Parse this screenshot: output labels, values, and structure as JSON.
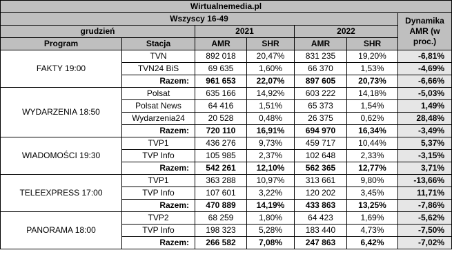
{
  "header": {
    "title": "Wirtualnemedia.pl",
    "subtitle": "Wszyscy 16-49",
    "period": "grudzień",
    "year_a": "2021",
    "year_b": "2022",
    "dynamics": "Dynamika AMR (w proc.)",
    "col_program": "Program",
    "col_station": "Stacja",
    "col_amr_a": "AMR",
    "col_shr_a": "SHR",
    "col_amr_b": "AMR",
    "col_shr_b": "SHR"
  },
  "groups": [
    {
      "program": "FAKTY 19:00",
      "rows": [
        {
          "station": "TVN",
          "amr21": "892 018",
          "shr21": "20,47%",
          "amr22": "831 235",
          "shr22": "19,20%",
          "dyn": "-6,81%"
        },
        {
          "station": "TVN24 BiS",
          "amr21": "69 635",
          "shr21": "1,60%",
          "amr22": "66 370",
          "shr22": "1,53%",
          "dyn": "-4,69%"
        }
      ],
      "total": {
        "label": "Razem:",
        "amr21": "961 653",
        "shr21": "22,07%",
        "amr22": "897 605",
        "shr22": "20,73%",
        "dyn": "-6,66%"
      }
    },
    {
      "program": "WYDARZENIA 18:50",
      "rows": [
        {
          "station": "Polsat",
          "amr21": "635 166",
          "shr21": "14,92%",
          "amr22": "603 222",
          "shr22": "14,18%",
          "dyn": "-5,03%"
        },
        {
          "station": "Polsat News",
          "amr21": "64 416",
          "shr21": "1,51%",
          "amr22": "65 373",
          "shr22": "1,54%",
          "dyn": "1,49%"
        },
        {
          "station": "Wydarzenia24",
          "amr21": "20 528",
          "shr21": "0,48%",
          "amr22": "26 375",
          "shr22": "0,62%",
          "dyn": "28,48%"
        }
      ],
      "total": {
        "label": "Razem:",
        "amr21": "720 110",
        "shr21": "16,91%",
        "amr22": "694 970",
        "shr22": "16,34%",
        "dyn": "-3,49%"
      }
    },
    {
      "program": "WIADOMOŚCI 19:30",
      "rows": [
        {
          "station": "TVP1",
          "amr21": "436 276",
          "shr21": "9,73%",
          "amr22": "459 717",
          "shr22": "10,44%",
          "dyn": "5,37%"
        },
        {
          "station": "TVP Info",
          "amr21": "105 985",
          "shr21": "2,37%",
          "amr22": "102 648",
          "shr22": "2,33%",
          "dyn": "-3,15%"
        }
      ],
      "total": {
        "label": "Razem:",
        "amr21": "542 261",
        "shr21": "12,10%",
        "amr22": "562 365",
        "shr22": "12,77%",
        "dyn": "3,71%"
      }
    },
    {
      "program": "TELEEXPRESS 17:00",
      "rows": [
        {
          "station": "TVP1",
          "amr21": "363 288",
          "shr21": "10,97%",
          "amr22": "313 661",
          "shr22": "9,80%",
          "dyn": "-13,66%"
        },
        {
          "station": "TVP Info",
          "amr21": "107 601",
          "shr21": "3,22%",
          "amr22": "120 202",
          "shr22": "3,45%",
          "dyn": "11,71%"
        }
      ],
      "total": {
        "label": "Razem:",
        "amr21": "470 889",
        "shr21": "14,19%",
        "amr22": "433 863",
        "shr22": "13,25%",
        "dyn": "-7,86%"
      }
    },
    {
      "program": "PANORAMA 18:00",
      "rows": [
        {
          "station": "TVP2",
          "amr21": "68 259",
          "shr21": "1,80%",
          "amr22": "64 423",
          "shr22": "1,69%",
          "dyn": "-5,62%"
        },
        {
          "station": "TVP Info",
          "amr21": "198 323",
          "shr21": "5,28%",
          "amr22": "183 440",
          "shr22": "4,73%",
          "dyn": "-7,50%"
        }
      ],
      "total": {
        "label": "Razem:",
        "amr21": "266 582",
        "shr21": "7,08%",
        "amr22": "247 863",
        "shr22": "6,42%",
        "dyn": "-7,02%"
      }
    }
  ]
}
